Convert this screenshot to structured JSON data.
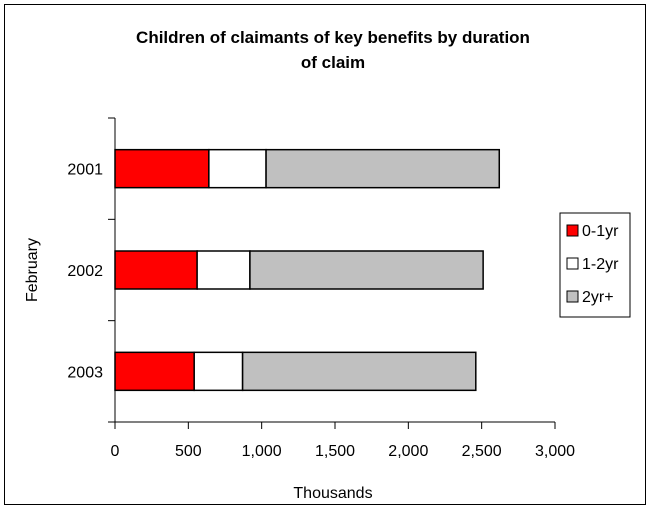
{
  "chart_data": {
    "type": "bar",
    "orientation": "horizontal",
    "stacked": true,
    "title_lines": [
      "Children of claimants of key benefits by duration",
      "of claim"
    ],
    "xlabel": "Thousands",
    "ylabel": "February",
    "categories": [
      "2001",
      "2002",
      "2003"
    ],
    "series": [
      {
        "name": "0-1yr",
        "color": "#ff0000",
        "values": [
          640,
          560,
          540
        ]
      },
      {
        "name": "1-2yr",
        "color": "#ffffff",
        "values": [
          390,
          360,
          330
        ]
      },
      {
        "name": "2yr+",
        "color": "#c0c0c0",
        "values": [
          1590,
          1590,
          1590
        ]
      }
    ],
    "xlim": [
      0,
      3000
    ],
    "xticks": [
      0,
      500,
      1000,
      1500,
      2000,
      2500,
      3000
    ],
    "xtick_labels": [
      "0",
      "500",
      "1,000",
      "1,500",
      "2,000",
      "2,500",
      "3,000"
    ],
    "grid": false,
    "legend_position": "right"
  }
}
